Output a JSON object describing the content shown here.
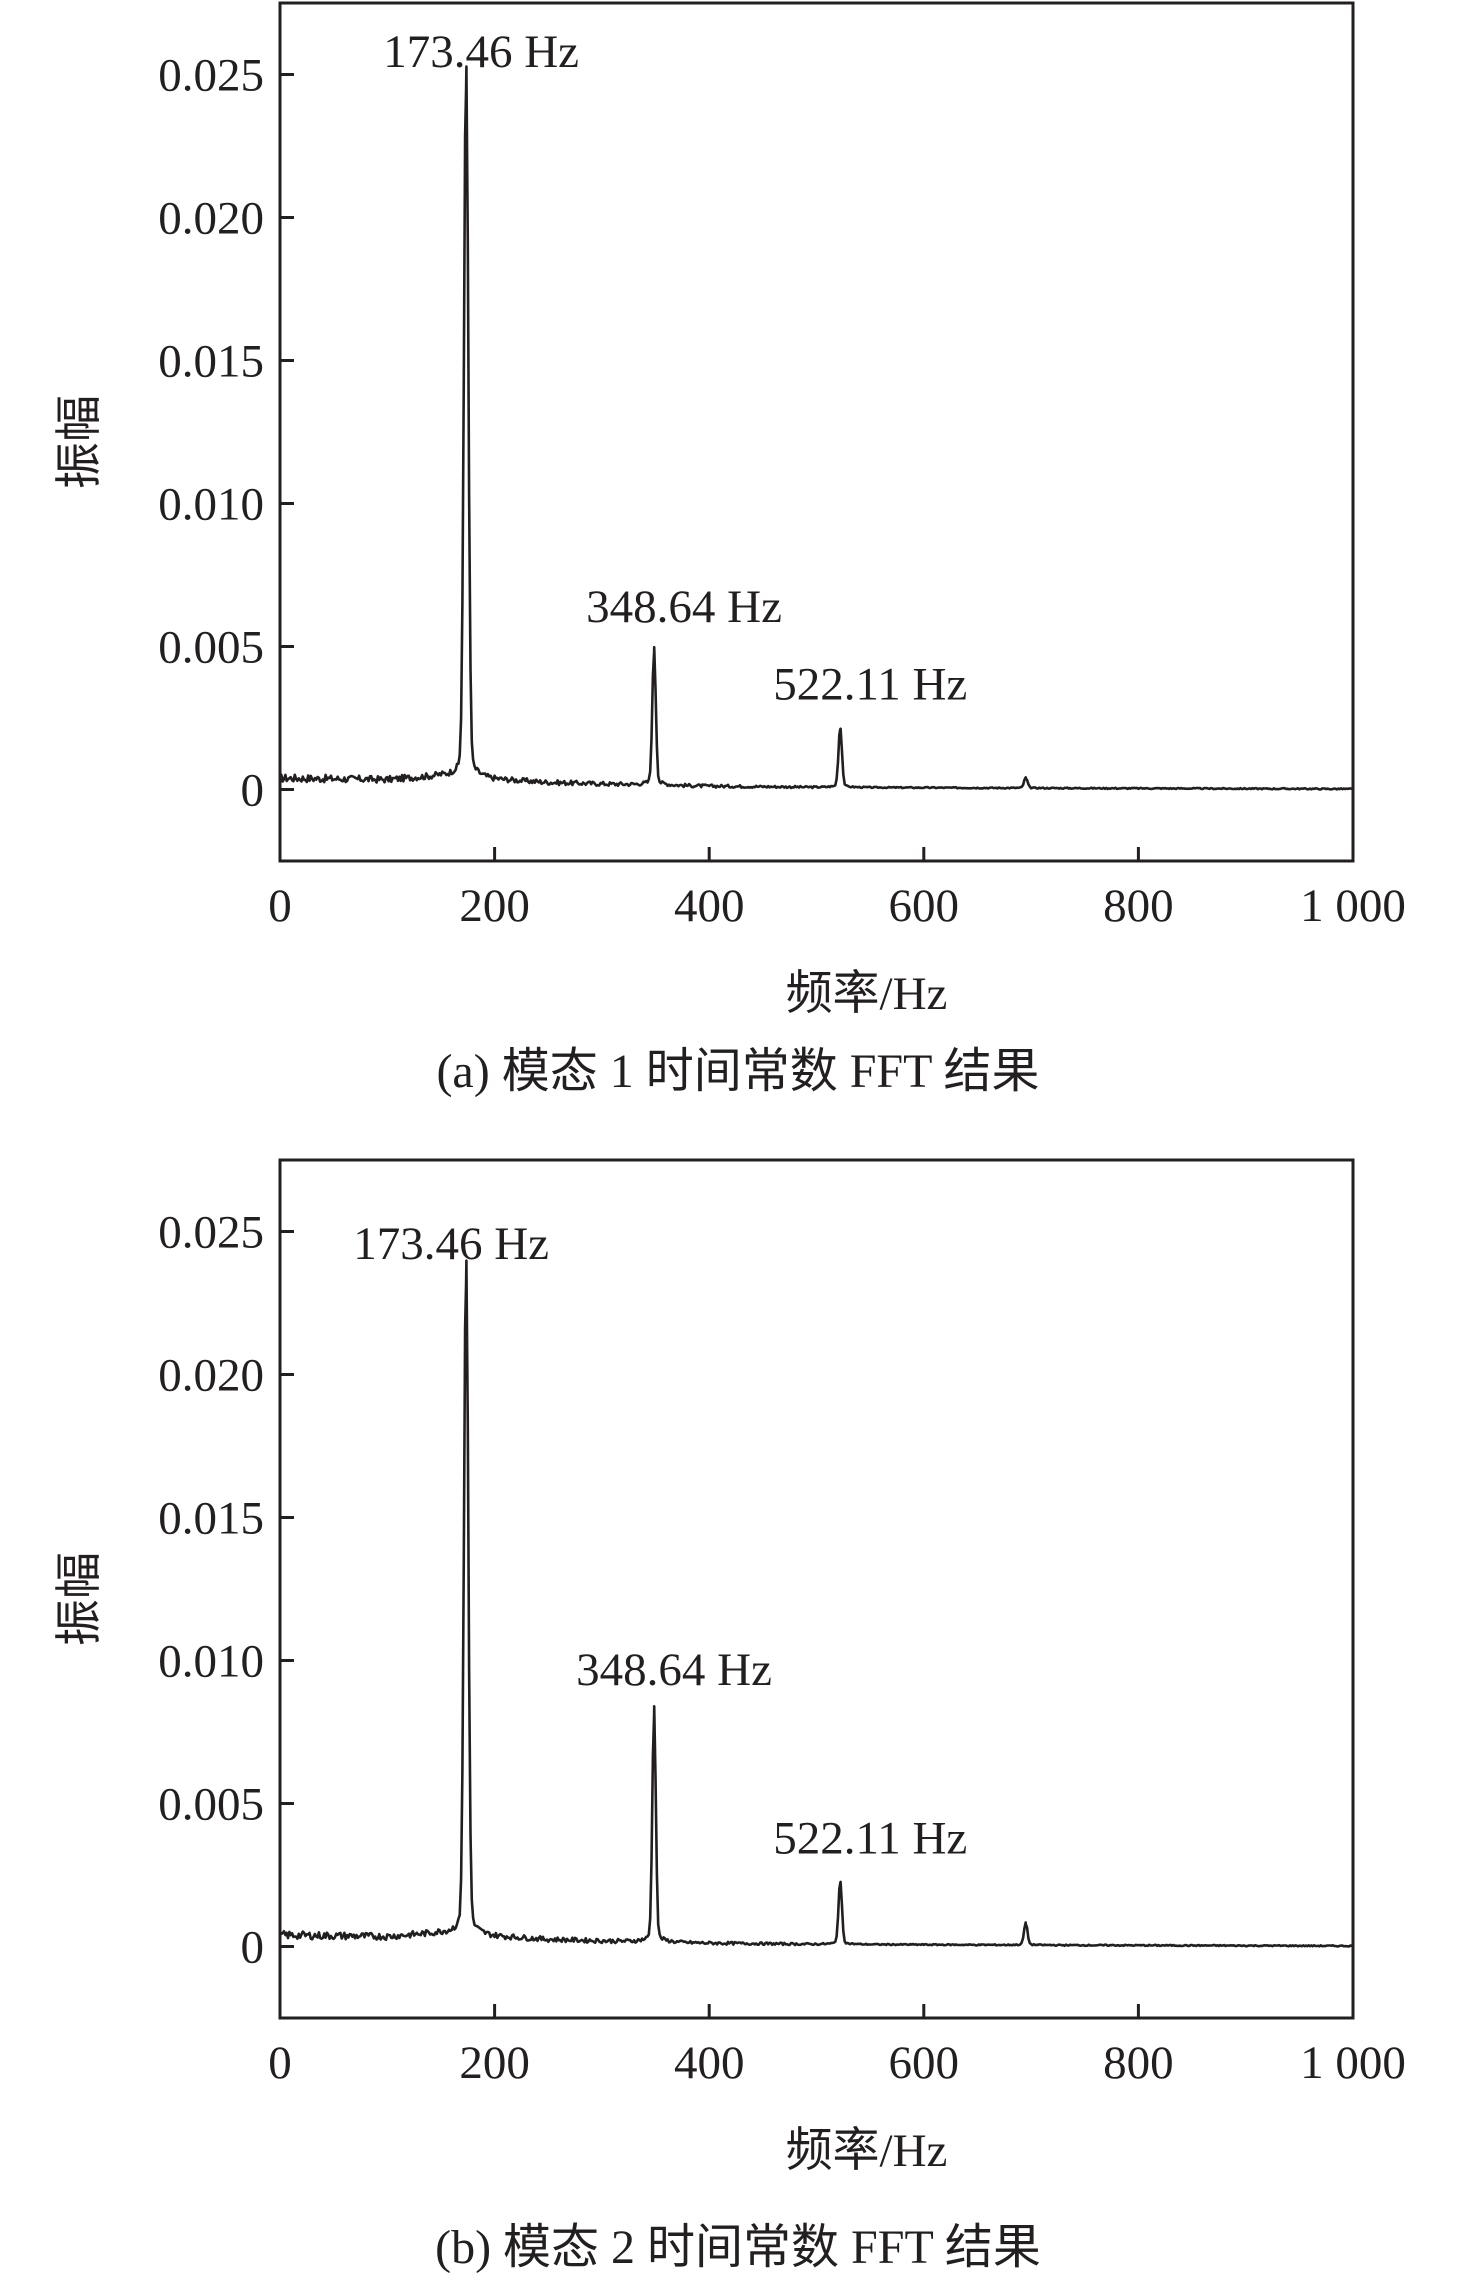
{
  "chart_data": [
    {
      "type": "line",
      "caption": "(a) 模态 1 时间常数 FFT 结果",
      "xlabel": "频率/Hz",
      "ylabel": "振幅",
      "xlim": [
        0,
        1000
      ],
      "ylim": [
        -0.0025,
        0.0275
      ],
      "x_ticks": [
        0,
        200,
        400,
        600,
        800,
        1000
      ],
      "x_tick_labels": [
        "0",
        "200",
        "400",
        "600",
        "800",
        "1 000"
      ],
      "y_ticks": [
        0,
        0.005,
        0.01,
        0.015,
        0.02,
        0.025
      ],
      "y_tick_labels": [
        "0",
        "0.005",
        "0.010",
        "0.015",
        "0.020",
        "0.025"
      ],
      "grid": false,
      "legend": "none",
      "peaks": [
        {
          "x": 173.46,
          "y": 0.0245,
          "label": "173.46 Hz"
        },
        {
          "x": 348.64,
          "y": 0.0048,
          "label": "348.64 Hz"
        },
        {
          "x": 522.11,
          "y": 0.0021,
          "label": "522.11 Hz"
        },
        {
          "x": 695.0,
          "y": 0.0004
        }
      ],
      "baseline": {
        "x": [
          0,
          100,
          150,
          250,
          300,
          400,
          500,
          700,
          1000
        ],
        "y": [
          0.0004,
          0.00035,
          0.0005,
          0.00025,
          0.0002,
          0.00012,
          8e-05,
          5e-05,
          2e-05
        ]
      }
    },
    {
      "type": "line",
      "caption": "(b) 模态 2 时间常数 FFT 结果",
      "xlabel": "频率/Hz",
      "ylabel": "振幅",
      "xlim": [
        0,
        1000
      ],
      "ylim": [
        -0.0025,
        0.0275
      ],
      "x_ticks": [
        0,
        200,
        400,
        600,
        800,
        1000
      ],
      "x_tick_labels": [
        "0",
        "200",
        "400",
        "600",
        "800",
        "1 000"
      ],
      "y_ticks": [
        0,
        0.005,
        0.01,
        0.015,
        0.02,
        0.025
      ],
      "y_tick_labels": [
        "0",
        "0.005",
        "0.010",
        "0.015",
        "0.020",
        "0.025"
      ],
      "grid": false,
      "legend": "none",
      "peaks": [
        {
          "x": 173.46,
          "y": 0.0232,
          "label": "173.46 Hz"
        },
        {
          "x": 348.64,
          "y": 0.0081,
          "label": "348.64 Hz"
        },
        {
          "x": 522.11,
          "y": 0.0022,
          "label": "522.11 Hz"
        },
        {
          "x": 695.0,
          "y": 0.0008
        }
      ],
      "baseline": {
        "x": [
          0,
          100,
          150,
          250,
          300,
          400,
          500,
          700,
          1000
        ],
        "y": [
          0.0004,
          0.00035,
          0.0005,
          0.00025,
          0.0002,
          0.00012,
          8e-05,
          5e-05,
          2e-05
        ]
      }
    }
  ]
}
